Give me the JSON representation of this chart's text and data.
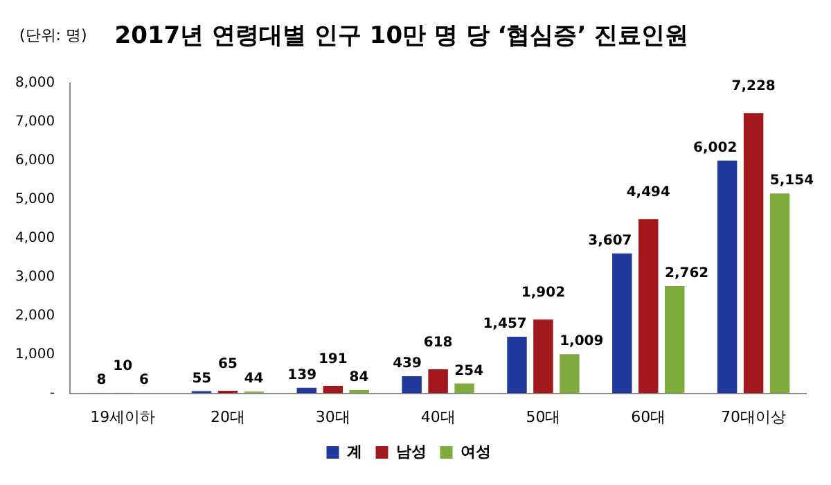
{
  "chart_data": {
    "type": "bar",
    "title": "2017년 연령대별 인구 10만 명 당 ‘협심증’ 진료인원",
    "annotations": [
      "(단위: 명)"
    ],
    "categories": [
      "19세이하",
      "20대",
      "30대",
      "40대",
      "50대",
      "60대",
      "70대이상"
    ],
    "series": [
      {
        "name": "계",
        "color": "#1f3a9c",
        "values": [
          8,
          55,
          139,
          439,
          1457,
          3607,
          6002
        ],
        "value_labels": [
          "8",
          "55",
          "139",
          "439",
          "1,457",
          "3,607",
          "6,002"
        ]
      },
      {
        "name": "남성",
        "color": "#a3181c",
        "values": [
          10,
          65,
          191,
          618,
          1902,
          4494,
          7228
        ],
        "value_labels": [
          "10",
          "65",
          "191",
          "618",
          "1,902",
          "4,494",
          "7,228"
        ]
      },
      {
        "name": "여성",
        "color": "#7faa3c",
        "values": [
          6,
          44,
          84,
          254,
          1009,
          2762,
          5154
        ],
        "value_labels": [
          "6",
          "44",
          "84",
          "254",
          "1,009",
          "2,762",
          "5,154"
        ]
      }
    ],
    "ylim": [
      0,
      8000
    ],
    "yticks": [
      {
        "value": 0,
        "label": "-"
      },
      {
        "value": 1000,
        "label": "1,000"
      },
      {
        "value": 2000,
        "label": "2,000"
      },
      {
        "value": 3000,
        "label": "3,000"
      },
      {
        "value": 4000,
        "label": "4,000"
      },
      {
        "value": 5000,
        "label": "5,000"
      },
      {
        "value": 6000,
        "label": "6,000"
      },
      {
        "value": 7000,
        "label": "7,000"
      },
      {
        "value": 8000,
        "label": "8,000"
      }
    ],
    "legend": "bottom",
    "grid": false
  }
}
